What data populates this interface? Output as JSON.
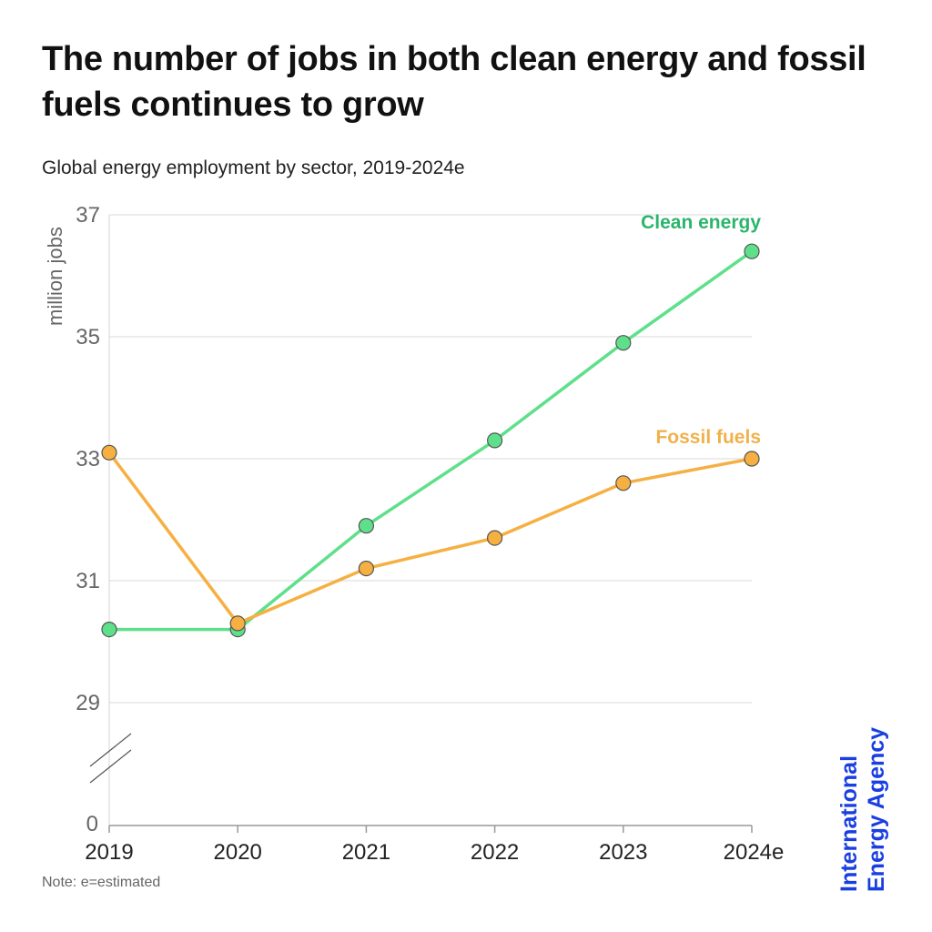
{
  "title": "The number of jobs in both clean energy and fossil fuels continues to grow",
  "subtitle": "Global energy employment by sector, 2019-2024e",
  "note": "Note: e=estimated",
  "organization": {
    "line1": "International",
    "line2": "Energy Agency",
    "color": "#1a3fe0"
  },
  "chart_data": {
    "type": "line",
    "title": "The number of jobs in both clean energy and fossil fuels continues to grow",
    "subtitle": "Global energy employment by sector, 2019-2024e",
    "xlabel": "",
    "ylabel": "million jobs",
    "categories": [
      "2019",
      "2020",
      "2021",
      "2022",
      "2023",
      "2024e"
    ],
    "y_ticks": [
      "37",
      "35",
      "33",
      "31",
      "29",
      "0"
    ],
    "y_tick_values": [
      37,
      35,
      33,
      31,
      29
    ],
    "ylim": [
      29,
      37
    ],
    "axis_break": "between 0 and 29",
    "grid": true,
    "series": [
      {
        "name": "Clean energy",
        "color": "#5ee08a",
        "label_color": "#2bb56a",
        "values": [
          30.2,
          30.2,
          31.9,
          33.3,
          34.9,
          36.4
        ]
      },
      {
        "name": "Fossil fuels",
        "color": "#f5b041",
        "label_color": "#f0b14a",
        "values": [
          33.1,
          30.3,
          31.2,
          31.7,
          32.6,
          33.0
        ]
      }
    ],
    "legend": "inline labels at line ends (top-right)"
  }
}
